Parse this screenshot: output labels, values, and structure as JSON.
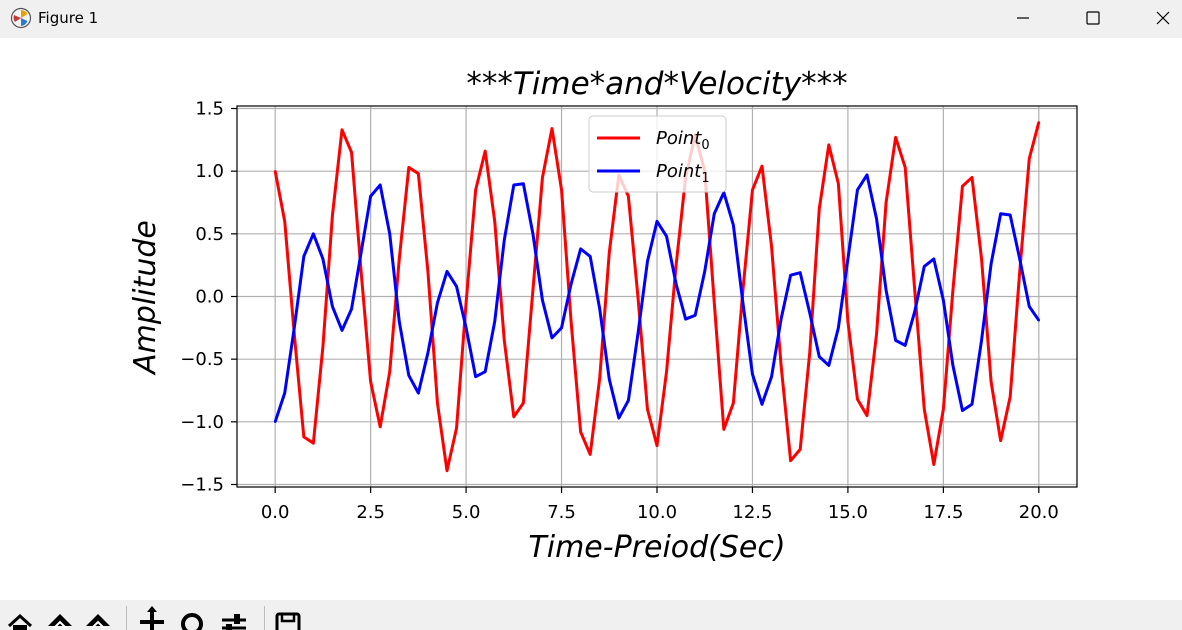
{
  "window": {
    "title": "Figure 1",
    "icons": [
      "app-icon",
      "minimize-icon",
      "maximize-icon",
      "close-icon"
    ]
  },
  "toolbar": {
    "icons": [
      "home-icon",
      "back-icon",
      "forward-icon",
      "pan-icon",
      "zoom-icon",
      "configure-icon",
      "save-icon"
    ]
  },
  "colors": {
    "series0": "#ff0000",
    "series1": "#0000ff",
    "grid": "#b0b0b0"
  },
  "chart_data": {
    "type": "line",
    "title": "***Time*and*Velocity***",
    "xlabel": "Time-Preiod(Sec)",
    "ylabel": "Amplitude",
    "xlim": [
      -1,
      21
    ],
    "ylim": [
      -1.52,
      1.52
    ],
    "xticks": [
      "0.0",
      "2.5",
      "5.0",
      "7.5",
      "10.0",
      "12.5",
      "15.0",
      "17.5",
      "20.0"
    ],
    "yticks": [
      "1.5",
      "1.0",
      "0.5",
      "0.0",
      "−0.5",
      "−1.0",
      "−1.5"
    ],
    "grid": true,
    "legend_position": "top-center",
    "x": [
      0.0,
      0.25,
      0.5,
      0.75,
      1.0,
      1.25,
      1.5,
      1.75,
      2.0,
      2.25,
      2.5,
      2.75,
      3.0,
      3.25,
      3.5,
      3.75,
      4.0,
      4.25,
      4.5,
      4.75,
      5.0,
      5.25,
      5.5,
      5.75,
      6.0,
      6.25,
      6.5,
      6.75,
      7.0,
      7.25,
      7.5,
      7.75,
      8.0,
      8.25,
      8.5,
      8.75,
      9.0,
      9.25,
      9.5,
      9.75,
      10.0,
      10.25,
      10.5,
      10.75,
      11.0,
      11.25,
      11.5,
      11.75,
      12.0,
      12.25,
      12.5,
      12.75,
      13.0,
      13.25,
      13.5,
      13.75,
      14.0,
      14.25,
      14.5,
      14.75,
      15.0,
      15.25,
      15.5,
      15.75,
      16.0,
      16.25,
      16.5,
      16.75,
      17.0,
      17.25,
      17.5,
      17.75,
      18.0,
      18.25,
      18.5,
      18.75,
      19.0,
      19.25,
      19.5,
      19.75,
      20.0
    ],
    "series": [
      {
        "name": "Point0",
        "label_base": "Point",
        "label_sub": "0",
        "color": "#ff0000",
        "values": [
          1.0,
          0.6,
          -0.3,
          -1.12,
          -1.17,
          -0.4,
          0.65,
          1.33,
          1.15,
          0.2,
          -0.68,
          -1.04,
          -0.6,
          0.3,
          1.03,
          0.98,
          0.2,
          -0.85,
          -1.39,
          -1.05,
          -0.05,
          0.85,
          1.16,
          0.6,
          -0.35,
          -0.96,
          -0.85,
          0.05,
          0.95,
          1.34,
          0.85,
          -0.2,
          -1.08,
          -1.26,
          -0.65,
          0.35,
          0.97,
          0.8,
          0.0,
          -0.9,
          -1.19,
          -0.6,
          0.25,
          0.95,
          1.29,
          1.0,
          -0.05,
          -1.06,
          -0.85,
          0.05,
          0.85,
          1.04,
          0.4,
          -0.55,
          -1.31,
          -1.22,
          -0.45,
          0.7,
          1.21,
          0.9,
          -0.2,
          -0.82,
          -0.95,
          -0.3,
          0.75,
          1.27,
          1.03,
          0.05,
          -0.9,
          -1.34,
          -0.9,
          0.05,
          0.88,
          0.95,
          0.3,
          -0.68,
          -1.15,
          -0.8,
          0.2,
          1.1,
          1.39
        ]
      },
      {
        "name": "Point1",
        "label_base": "Point",
        "label_sub": "1",
        "color": "#0000ff",
        "values": [
          -1.0,
          -0.77,
          -0.25,
          0.32,
          0.5,
          0.3,
          -0.08,
          -0.27,
          -0.1,
          0.35,
          0.8,
          0.89,
          0.5,
          -0.2,
          -0.63,
          -0.77,
          -0.45,
          -0.05,
          0.2,
          0.08,
          -0.25,
          -0.64,
          -0.6,
          -0.2,
          0.45,
          0.89,
          0.9,
          0.5,
          -0.03,
          -0.33,
          -0.25,
          0.1,
          0.38,
          0.32,
          -0.1,
          -0.66,
          -0.97,
          -0.83,
          -0.3,
          0.28,
          0.6,
          0.48,
          0.1,
          -0.18,
          -0.15,
          0.2,
          0.66,
          0.83,
          0.57,
          -0.05,
          -0.62,
          -0.86,
          -0.64,
          -0.18,
          0.17,
          0.19,
          -0.13,
          -0.48,
          -0.55,
          -0.25,
          0.3,
          0.85,
          0.97,
          0.62,
          0.05,
          -0.35,
          -0.39,
          -0.12,
          0.24,
          0.3,
          -0.03,
          -0.55,
          -0.91,
          -0.86,
          -0.35,
          0.26,
          0.66,
          0.65,
          0.3,
          -0.08,
          -0.19
        ]
      }
    ]
  }
}
